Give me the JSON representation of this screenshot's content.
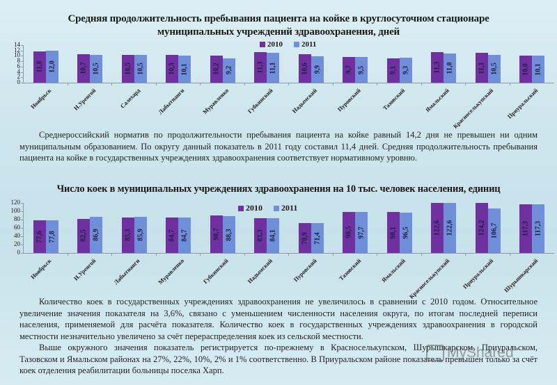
{
  "titles": {
    "chart1_line1": "Средняя продолжительность пребывания пациента на койке в круглосуточном стационаре",
    "chart1_line2": "муниципальных учреждений здравоохранения, дней",
    "chart2": "Число коек в муниципальных учреждениях здравоохранения на 10 тыс. человек населения, единиц"
  },
  "legend": {
    "series_2010": "2010",
    "series_2011": "2011"
  },
  "colors": {
    "series_2010": "#7030a0",
    "series_2011": "#6f8fd8",
    "background": "#cfe6ee"
  },
  "paragraph1": "Среднероссийский норматив по продолжительности пребывания пациента на койке равный 14,2 дня не превышен ни одним муниципальным образованием. По округу данный показатель в 2011 году составил 11,4 дней. Средняя продолжительность пребывания пациента на койке в государственных учреждениях здравоохранения соответствует нормативному уровню.",
  "paragraph2": "Количество коек в государственных учреждениях здравоохранения не увеличилось в сравнении с 2010 годом. Относительное увеличение значения показателя на 3,6%, связано с уменьшением численности населения округа, по итогам последней переписи населения, применяемой для расчёта показателя. Количество коек в государственных учреждениях здравоохранения в городской местности незначительно увеличено за счёт перераспределения коек из сельской местности.",
  "paragraph3": "Выше окружного значения показатель регистрируется по-прежнему в Красноселькупском, Шурышкарском, Приуральском, Тазовском и Ямальском районах на 27%, 22%, 10%, 2% и 1% соответственно. В Приуральском районе показатель превышен только за счёт коек отделения реабилитации больницы поселка Харп.",
  "watermark": "MyShared",
  "chart_data": [
    {
      "type": "bar",
      "title": "Средняя продолжительность пребывания пациента на койке в круглосуточном стационаре муниципальных учреждений здравоохранения, дней",
      "xlabel": "",
      "ylabel": "",
      "ylim": [
        0,
        14
      ],
      "yticks": [
        "0",
        "2",
        "4",
        "6",
        "8",
        "10",
        "12",
        "14"
      ],
      "legend_position": "top",
      "grid": false,
      "categories": [
        "Ноябрьск",
        "Н.Уренгой",
        "Салехард",
        "Лабытнанги",
        "Муравленко",
        "Губкинский",
        "Надымский",
        "Пуровский",
        "Тазовский",
        "Ямальский",
        "Красноселькупский",
        "Приуральский"
      ],
      "series": [
        {
          "name": "2010",
          "values": [
            11.8,
            10.7,
            10.5,
            10.3,
            10.2,
            11.3,
            10.6,
            9.7,
            9.1,
            11.3,
            11.1,
            10.0
          ],
          "labels": [
            "11,8",
            "10,7",
            "10,5",
            "10,3",
            "10,2",
            "11,3",
            "10,6",
            "9,7",
            "9,1",
            "11,3",
            "11,1",
            "10,0"
          ]
        },
        {
          "name": "2011",
          "values": [
            12.0,
            10.5,
            10.5,
            10.1,
            9.2,
            11.1,
            9.9,
            9.5,
            9.3,
            11.0,
            10.5,
            10.1
          ],
          "labels": [
            "12,0",
            "10,5",
            "10,5",
            "10,1",
            "9,2",
            "11,1",
            "9,9",
            "9,5",
            "9,3",
            "11,0",
            "10,5",
            "10,1"
          ]
        }
      ]
    },
    {
      "type": "bar",
      "title": "Число коек в муниципальных учреждениях здравоохранения на 10 тыс. человек населения, единиц",
      "xlabel": "",
      "ylabel": "",
      "ylim": [
        0,
        120
      ],
      "yticks": [
        "0",
        "20",
        "40",
        "60",
        "80",
        "100",
        "120"
      ],
      "legend_position": "top",
      "grid": false,
      "categories": [
        "Ноябрьск",
        "Н.Уренгой",
        "Лабытнанги",
        "Муравленко",
        "Губкинский",
        "Надымский",
        "Пуровский",
        "Тазовский",
        "Ямальский",
        "Красноселькупский",
        "Приуральский",
        "Шурышкарский"
      ],
      "series": [
        {
          "name": "2010",
          "values": [
            77.6,
            82.5,
            85.3,
            84.7,
            90.7,
            83.3,
            70.9,
            98.5,
            98.1,
            122.6,
            124.2,
            117.3
          ],
          "labels": [
            "77,6",
            "82,5",
            "85,3",
            "84,7",
            "90,7",
            "83,3",
            "70,9",
            "98,5",
            "98,1",
            "122,6",
            "124,2",
            "117,3"
          ]
        },
        {
          "name": "2011",
          "values": [
            77.8,
            86.9,
            85.9,
            84.7,
            88.3,
            84.1,
            71.4,
            97.7,
            96.5,
            122.6,
            106.7,
            117.3
          ],
          "labels": [
            "77,8",
            "86,9",
            "85,9",
            "84,7",
            "88,3",
            "84,1",
            "71,4",
            "97,7",
            "96,5",
            "122,6",
            "106,7",
            "117,3"
          ]
        }
      ]
    }
  ]
}
